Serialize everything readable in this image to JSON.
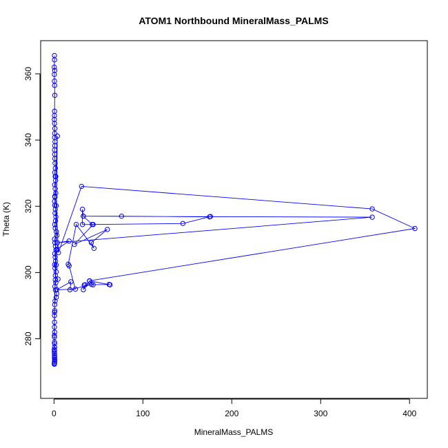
{
  "chart_data": {
    "type": "scatter",
    "title": "ATOM1 Northbound MineralMass_PALMS",
    "xlabel": "MineralMass_PALMS",
    "ylabel": "Theta (K)",
    "xlim": [
      -15,
      420
    ],
    "ylim": [
      262,
      370
    ],
    "x_ticks": [
      0,
      100,
      200,
      300,
      400
    ],
    "y_ticks": [
      280,
      300,
      320,
      340,
      360
    ],
    "x_tick_labels": [
      "0",
      "100",
      "200",
      "300",
      "400"
    ],
    "y_tick_labels": [
      "280",
      "300",
      "320",
      "340",
      "360"
    ],
    "grid": false,
    "legend": "none",
    "series_color": "#0000ff",
    "marker": "open-circle",
    "connected": true,
    "series": [
      {
        "x": [
          0.5,
          0.6,
          0.3,
          0.8,
          0.4,
          0.5,
          0.7,
          0.9,
          0.6,
          0.5,
          0.4,
          0.6,
          1.0,
          0.8,
          0.7,
          1.1,
          0.9,
          0.6,
          0.8,
          1.0,
          1.2,
          1.5,
          0.9,
          1.4,
          1.8,
          0.7,
          1.3,
          2.0,
          1.1,
          0.6,
          0.9,
          1.5,
          1.2,
          2.1,
          1.7,
          0.8,
          1.4,
          2.6,
          3.2,
          0.6,
          1.0,
          1.6,
          2.2,
          0.9,
          1.3,
          1.8,
          0.7,
          1.1,
          2.4,
          1.5,
          4.5,
          2.0,
          1.0,
          1.6,
          3.0,
          2.4,
          1.2,
          0.8,
          3.8,
          2.0,
          0.9,
          2.4,
          5.0,
          31,
          358,
          406,
          40,
          63,
          62,
          35,
          33,
          40,
          44,
          34,
          42,
          18,
          19,
          3.0,
          24,
          17,
          16,
          25,
          45,
          42,
          60,
          23,
          44,
          32,
          32,
          33,
          43,
          145,
          176,
          175,
          76,
          33,
          358,
          3.8,
          17,
          3.0,
          2.4,
          1.4,
          0.6,
          0.5,
          0.4,
          0.6,
          0.7,
          0.5,
          0.4,
          0.6,
          0.5,
          0.7,
          0.6,
          0.4,
          0.5,
          0.8,
          0.6,
          0.7,
          0.5,
          0.6,
          0.4,
          0.5,
          0.6,
          0.7,
          0.5,
          0.6,
          0.4
        ],
        "y": [
          365.5,
          364.2,
          362.0,
          361.0,
          359.8,
          357.8,
          356.5,
          353.5,
          348.7,
          347.4,
          346.2,
          345.0,
          343.5,
          342.0,
          340.8,
          339.5,
          338.3,
          337.0,
          335.7,
          334.4,
          333.0,
          331.5,
          330.2,
          329.0,
          327.8,
          326.5,
          325.3,
          324.0,
          322.8,
          321.5,
          320.3,
          319.1,
          317.9,
          316.8,
          315.6,
          314.5,
          313.4,
          312.3,
          311.2,
          310.1,
          309.0,
          307.9,
          306.8,
          305.7,
          304.6,
          303.5,
          302.4,
          301.3,
          300.2,
          299.1,
          298.0,
          296.9,
          295.8,
          294.7,
          293.6,
          292.5,
          291.4,
          290.3,
          341.2,
          329.0,
          323.0,
          320.2,
          306.0,
          326.0,
          319.2,
          313.3,
          297.5,
          296.3,
          296.4,
          296.3,
          294.8,
          297.4,
          296.3,
          296.2,
          296.4,
          294.8,
          297.2,
          294.8,
          295.0,
          302.0,
          302.5,
          314.5,
          307.3,
          309.0,
          313.0,
          308.5,
          314.5,
          314.5,
          319.1,
          317.0,
          314.5,
          314.8,
          316.9,
          316.8,
          317.0,
          317.0,
          316.7,
          309.0,
          309.5,
          307.0,
          302.3,
          297.8,
          288.0,
          283.5,
          281.0,
          279.0,
          277.5,
          276.5,
          276.0,
          275.0,
          274.3,
          273.5,
          273.0,
          272.5,
          287.0,
          288.5,
          285.0,
          282.0,
          280.5,
          278.5,
          276.8,
          275.5,
          274.5,
          273.8,
          273.0,
          272.6,
          272.3
        ]
      }
    ]
  }
}
